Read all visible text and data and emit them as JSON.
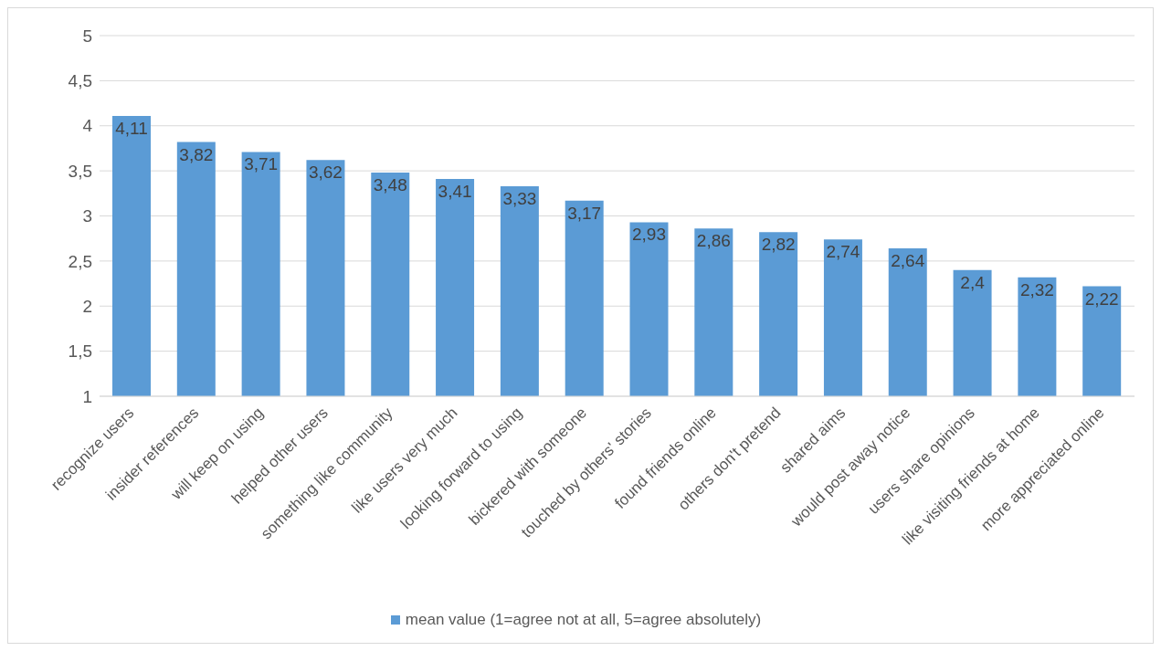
{
  "chart_data": {
    "type": "bar",
    "categories": [
      "recognize users",
      "insider references",
      "will keep on using",
      "helped other users",
      "something like community",
      "like users very much",
      "looking forward to using",
      "bickered with someone",
      "touched by others' stories",
      "found friends online",
      "others don't pretend",
      "shared aims",
      "would post away notice",
      "users share opinions",
      "like visiting friends at home",
      "more appreciated online"
    ],
    "series": [
      {
        "name": "mean value (1=agree not at all, 5=agree absolutely)",
        "color": "#5b9bd5",
        "values": [
          4.11,
          3.82,
          3.71,
          3.62,
          3.48,
          3.41,
          3.33,
          3.17,
          2.93,
          2.86,
          2.82,
          2.74,
          2.64,
          2.4,
          2.32,
          2.22
        ],
        "value_labels": [
          "4,11",
          "3,82",
          "3,71",
          "3,62",
          "3,48",
          "3,41",
          "3,33",
          "3,17",
          "2,93",
          "2,86",
          "2,82",
          "2,74",
          "2,64",
          "2,4",
          "2,32",
          "2,22"
        ]
      }
    ],
    "ylim": [
      1,
      5
    ],
    "yticks": [
      1,
      {
        "value": 1.5,
        "label": "1,5"
      },
      2,
      {
        "value": 2.5,
        "label": "2,5"
      },
      3,
      {
        "value": 3.5,
        "label": "3,5"
      },
      4,
      {
        "value": 4.5,
        "label": "4,5"
      },
      5
    ],
    "grid": "y",
    "legend": "bottom"
  }
}
